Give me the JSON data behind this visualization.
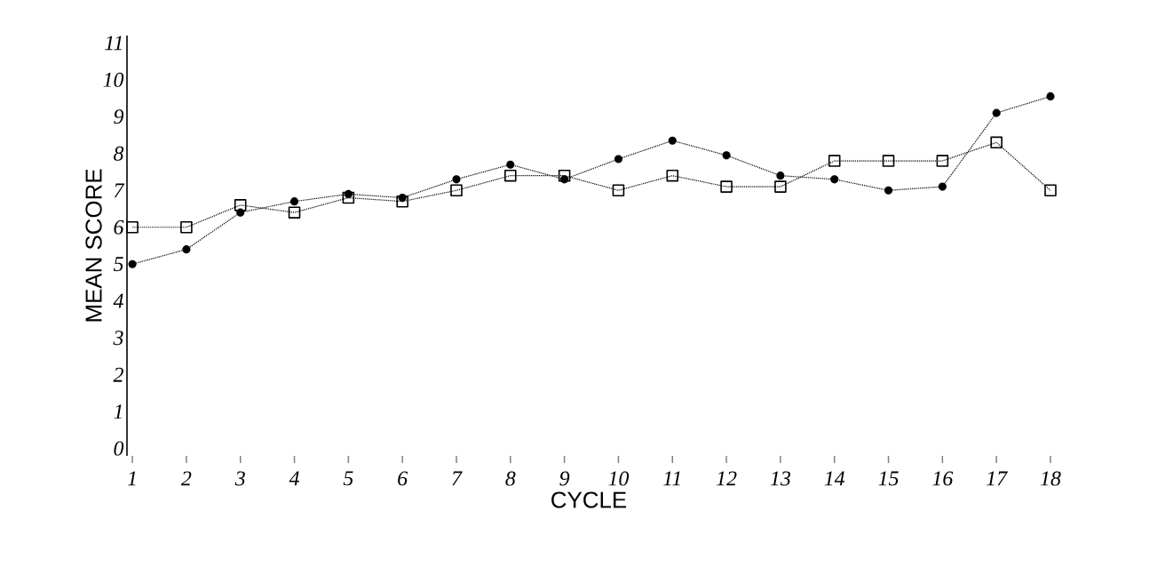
{
  "chart_data": {
    "type": "line",
    "xlabel": "CYCLE",
    "ylabel": "MEAN SCORE",
    "x": [
      1,
      2,
      3,
      4,
      5,
      6,
      7,
      8,
      9,
      10,
      11,
      12,
      13,
      14,
      15,
      16,
      17,
      18
    ],
    "xlim": [
      0.9,
      18
    ],
    "xticks": [
      1,
      2,
      3,
      4,
      5,
      6,
      7,
      8,
      9,
      10,
      11,
      12,
      13,
      14,
      15,
      16,
      17,
      18
    ],
    "ylim": [
      -0.2,
      11.2
    ],
    "yticks": [
      0,
      1,
      2,
      3,
      4,
      5,
      6,
      7,
      8,
      9,
      10,
      11
    ],
    "series": [
      {
        "color": "#000000",
        "marker": "circle",
        "line_style": "dotted",
        "values": [
          5.0,
          5.4,
          6.4,
          6.7,
          6.9,
          6.8,
          7.3,
          7.7,
          7.3,
          7.85,
          8.35,
          7.95,
          7.4,
          7.3,
          7.0,
          7.1,
          9.1,
          9.55
        ]
      },
      {
        "color": "#000000",
        "marker": "square",
        "line_style": "dotted",
        "values": [
          6.0,
          6.0,
          6.6,
          6.4,
          6.8,
          6.7,
          7.0,
          7.4,
          7.4,
          7.0,
          7.4,
          7.1,
          7.1,
          7.8,
          7.8,
          7.8,
          8.3,
          7.0
        ]
      }
    ]
  }
}
